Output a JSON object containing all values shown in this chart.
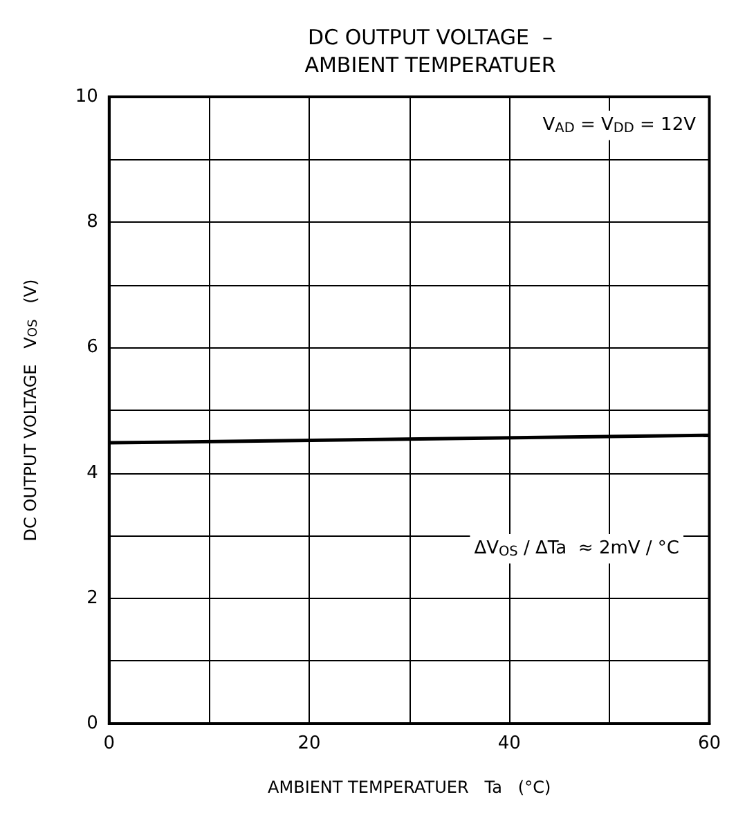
{
  "chart_data": {
    "type": "line",
    "title": "DC OUTPUT VOLTAGE  –\nAMBIENT TEMPERATUER",
    "xlabel": "AMBIENT TEMPERATUER   Ta   (°C)",
    "ylabel": "DC OUTPUT VOLTAGE   V$_{OS}$   (V)",
    "x": [
      0,
      60
    ],
    "series": [
      {
        "color": "#000000",
        "values": [
          4.48,
          4.6
        ]
      }
    ],
    "xlim": [
      0,
      60
    ],
    "xticks": [
      0,
      {
        "value": 10,
        "label": null
      },
      20,
      {
        "value": 30,
        "label": null
      },
      40,
      {
        "value": 50,
        "label": null
      },
      60
    ],
    "ylim": [
      0,
      10
    ],
    "yticks": [
      0,
      {
        "value": 1,
        "label": null
      },
      2,
      {
        "value": 3,
        "label": null
      },
      4,
      {
        "value": 5,
        "label": null
      },
      6,
      {
        "value": 7,
        "label": null
      },
      8,
      {
        "value": 9,
        "label": null
      },
      10
    ],
    "grid": true,
    "marker": "none",
    "line_style": "solid",
    "annotations": [
      "V$_{AD}$ = V$_{DD}$ = 12V",
      "ΔV$_{OS}$ / ΔTa  ≈ 2mV / °C"
    ]
  }
}
